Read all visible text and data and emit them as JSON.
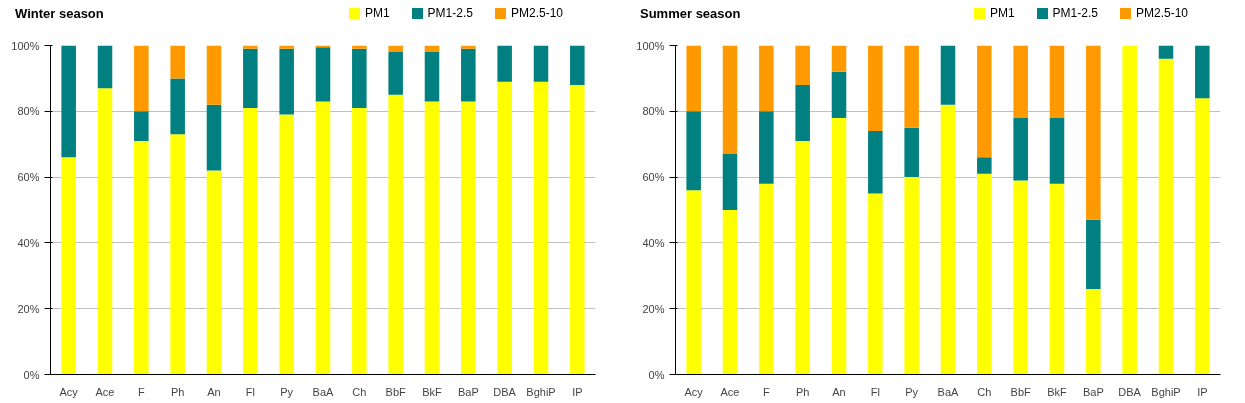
{
  "chart_data": [
    {
      "type": "bar",
      "title": "Winter season",
      "stacked": true,
      "legend": "top",
      "grid": "y",
      "categories": [
        "Acy",
        "Ace",
        "F",
        "Ph",
        "An",
        "Fl",
        "Py",
        "BaA",
        "Ch",
        "BbF",
        "BkF",
        "BaP",
        "DBA",
        "BghiP",
        "IP"
      ],
      "ylim": [
        0,
        100
      ],
      "yticks": [
        {
          "value": 0,
          "label": "0%"
        },
        {
          "value": 20,
          "label": "20%"
        },
        {
          "value": 40,
          "label": "40%"
        },
        {
          "value": 60,
          "label": "60%"
        },
        {
          "value": 80,
          "label": "80%"
        },
        {
          "value": 100,
          "label": "100%"
        }
      ],
      "series": [
        {
          "name": "PM1",
          "color": "#ffff00",
          "values": [
            66,
            87,
            71,
            73,
            62,
            81,
            79,
            83,
            81,
            85,
            83,
            83,
            89,
            89,
            88
          ]
        },
        {
          "name": "PM1-2.5",
          "color": "#008080",
          "values": [
            34,
            13,
            9,
            17,
            20,
            18,
            20,
            16.5,
            18,
            13,
            15,
            16,
            11,
            11,
            12
          ]
        },
        {
          "name": "PM2.5-10",
          "color": "#ff9900",
          "values": [
            0,
            0,
            20,
            10,
            18,
            1,
            1,
            0.5,
            1,
            2,
            2,
            1,
            0,
            0,
            0
          ]
        }
      ]
    },
    {
      "type": "bar",
      "title": "Summer season",
      "stacked": true,
      "legend": "top",
      "grid": "y",
      "categories": [
        "Acy",
        "Ace",
        "F",
        "Ph",
        "An",
        "Fl",
        "Py",
        "BaA",
        "Ch",
        "BbF",
        "BkF",
        "BaP",
        "DBA",
        "BghiP",
        "IP"
      ],
      "ylim": [
        0,
        100
      ],
      "yticks": [
        {
          "value": 0,
          "label": "0%"
        },
        {
          "value": 20,
          "label": "20%"
        },
        {
          "value": 40,
          "label": "40%"
        },
        {
          "value": 60,
          "label": "60%"
        },
        {
          "value": 80,
          "label": "80%"
        },
        {
          "value": 100,
          "label": "100%"
        }
      ],
      "series": [
        {
          "name": "PM1",
          "color": "#ffff00",
          "values": [
            56,
            50,
            58,
            71,
            78,
            55,
            60,
            82,
            61,
            59,
            58,
            26,
            100,
            96,
            84
          ]
        },
        {
          "name": "PM1-2.5",
          "color": "#008080",
          "values": [
            24,
            17,
            22,
            17,
            14,
            19,
            15,
            18,
            5,
            19,
            20,
            21,
            0,
            4,
            16
          ]
        },
        {
          "name": "PM2.5-10",
          "color": "#ff9900",
          "values": [
            20,
            33,
            20,
            12,
            8,
            26,
            25,
            0,
            34,
            22,
            22,
            53,
            0,
            0,
            0
          ]
        }
      ]
    }
  ]
}
